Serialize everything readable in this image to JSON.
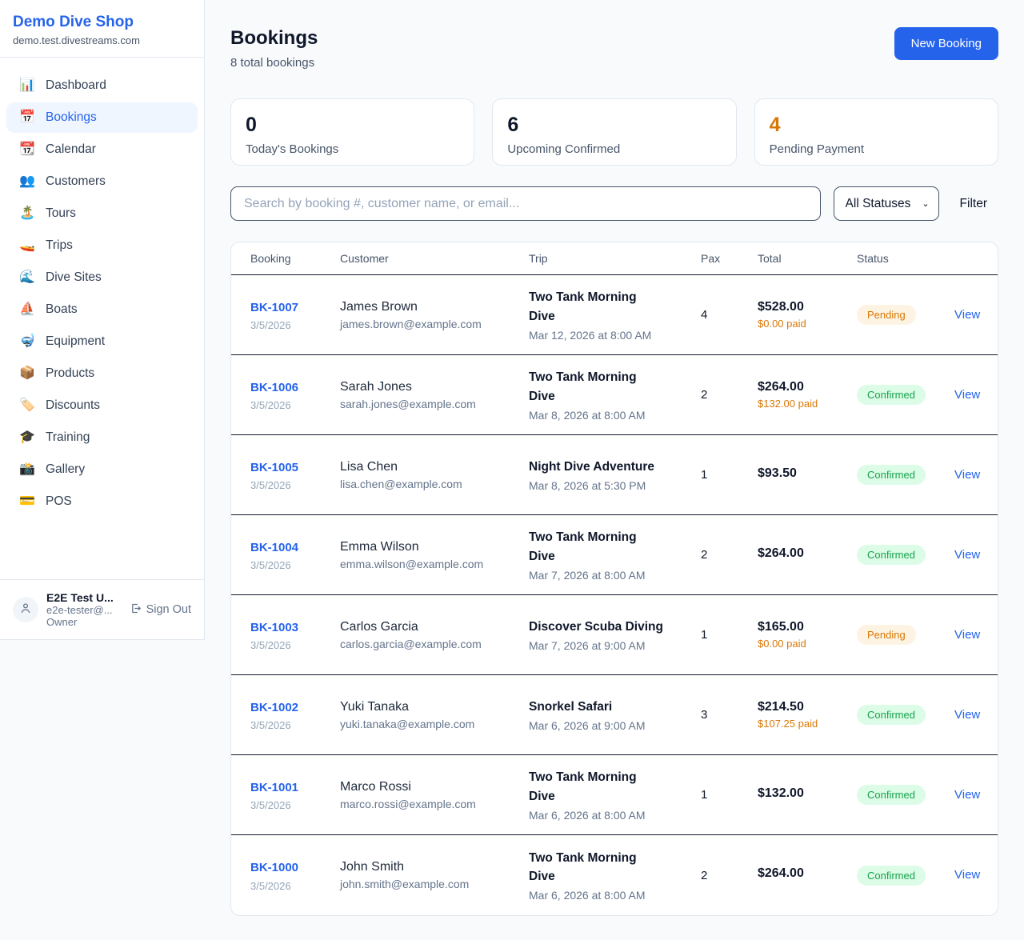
{
  "sidebar": {
    "brand": {
      "name": "Demo Dive Shop",
      "domain": "demo.test.divestreams.com"
    },
    "nav": [
      {
        "label": "Dashboard",
        "icon": "bar-chart-icon",
        "glyph": "📊",
        "active": false
      },
      {
        "label": "Bookings",
        "icon": "calendar-icon",
        "glyph": "📅",
        "active": true
      },
      {
        "label": "Calendar",
        "icon": "tear-off-calendar-icon",
        "glyph": "📆",
        "active": false
      },
      {
        "label": "Customers",
        "icon": "people-icon",
        "glyph": "👥",
        "active": false
      },
      {
        "label": "Tours",
        "icon": "island-icon",
        "glyph": "🏝️",
        "active": false
      },
      {
        "label": "Trips",
        "icon": "speedboat-icon",
        "glyph": "🚤",
        "active": false
      },
      {
        "label": "Dive Sites",
        "icon": "wave-icon",
        "glyph": "🌊",
        "active": false
      },
      {
        "label": "Boats",
        "icon": "sailboat-icon",
        "glyph": "⛵",
        "active": false
      },
      {
        "label": "Equipment",
        "icon": "diving-mask-icon",
        "glyph": "🤿",
        "active": false
      },
      {
        "label": "Products",
        "icon": "package-icon",
        "glyph": "📦",
        "active": false
      },
      {
        "label": "Discounts",
        "icon": "label-tag-icon",
        "glyph": "🏷️",
        "active": false
      },
      {
        "label": "Training",
        "icon": "graduation-cap-icon",
        "glyph": "🎓",
        "active": false
      },
      {
        "label": "Gallery",
        "icon": "camera-flash-icon",
        "glyph": "📸",
        "active": false
      },
      {
        "label": "POS",
        "icon": "credit-card-icon",
        "glyph": "💳",
        "active": false
      }
    ],
    "user": {
      "name": "E2E Test U...",
      "email": "e2e-tester@...",
      "role": "Owner",
      "sign_out_label": "Sign Out"
    }
  },
  "header": {
    "title": "Bookings",
    "subtitle": "8 total bookings",
    "new_booking_label": "New Booking"
  },
  "stats": [
    {
      "value": "0",
      "label": "Today's Bookings",
      "color": "#0f172a"
    },
    {
      "value": "6",
      "label": "Upcoming Confirmed",
      "color": "#0f172a"
    },
    {
      "value": "4",
      "label": "Pending Payment",
      "color": "#d97706"
    }
  ],
  "filters": {
    "search_placeholder": "Search by booking #, customer name, or email...",
    "status_selected": "All Statuses",
    "filter_label": "Filter"
  },
  "table": {
    "columns": [
      "Booking",
      "Customer",
      "Trip",
      "Pax",
      "Total",
      "Status"
    ],
    "view_label": "View",
    "rows": [
      {
        "booking_id": "BK-1007",
        "booking_date": "3/5/2026",
        "customer_name": "James Brown",
        "customer_email": "james.brown@example.com",
        "trip_name": "Two Tank Morning Dive",
        "trip_datetime": "Mar 12, 2026 at 8:00 AM",
        "pax": "4",
        "total": "$528.00",
        "paid": "$0.00 paid",
        "status": "Pending"
      },
      {
        "booking_id": "BK-1006",
        "booking_date": "3/5/2026",
        "customer_name": "Sarah Jones",
        "customer_email": "sarah.jones@example.com",
        "trip_name": "Two Tank Morning Dive",
        "trip_datetime": "Mar 8, 2026 at 8:00 AM",
        "pax": "2",
        "total": "$264.00",
        "paid": "$132.00 paid",
        "status": "Confirmed"
      },
      {
        "booking_id": "BK-1005",
        "booking_date": "3/5/2026",
        "customer_name": "Lisa Chen",
        "customer_email": "lisa.chen@example.com",
        "trip_name": "Night Dive Adventure",
        "trip_datetime": "Mar 8, 2026 at 5:30 PM",
        "pax": "1",
        "total": "$93.50",
        "paid": "",
        "status": "Confirmed"
      },
      {
        "booking_id": "BK-1004",
        "booking_date": "3/5/2026",
        "customer_name": "Emma Wilson",
        "customer_email": "emma.wilson@example.com",
        "trip_name": "Two Tank Morning Dive",
        "trip_datetime": "Mar 7, 2026 at 8:00 AM",
        "pax": "2",
        "total": "$264.00",
        "paid": "",
        "status": "Confirmed"
      },
      {
        "booking_id": "BK-1003",
        "booking_date": "3/5/2026",
        "customer_name": "Carlos Garcia",
        "customer_email": "carlos.garcia@example.com",
        "trip_name": "Discover Scuba Diving",
        "trip_datetime": "Mar 7, 2026 at 9:00 AM",
        "pax": "1",
        "total": "$165.00",
        "paid": "$0.00 paid",
        "status": "Pending"
      },
      {
        "booking_id": "BK-1002",
        "booking_date": "3/5/2026",
        "customer_name": "Yuki Tanaka",
        "customer_email": "yuki.tanaka@example.com",
        "trip_name": "Snorkel Safari",
        "trip_datetime": "Mar 6, 2026 at 9:00 AM",
        "pax": "3",
        "total": "$214.50",
        "paid": "$107.25 paid",
        "status": "Confirmed"
      },
      {
        "booking_id": "BK-1001",
        "booking_date": "3/5/2026",
        "customer_name": "Marco Rossi",
        "customer_email": "marco.rossi@example.com",
        "trip_name": "Two Tank Morning Dive",
        "trip_datetime": "Mar 6, 2026 at 8:00 AM",
        "pax": "1",
        "total": "$132.00",
        "paid": "",
        "status": "Confirmed"
      },
      {
        "booking_id": "BK-1000",
        "booking_date": "3/5/2026",
        "customer_name": "John Smith",
        "customer_email": "john.smith@example.com",
        "trip_name": "Two Tank Morning Dive",
        "trip_datetime": "Mar 6, 2026 at 8:00 AM",
        "pax": "2",
        "total": "$264.00",
        "paid": "",
        "status": "Confirmed"
      }
    ]
  },
  "colors": {
    "accent_blue": "#2563eb",
    "pending_orange": "#d97706",
    "pending_badge_bg": "#fdf3e2",
    "confirmed_green": "#16a34a",
    "confirmed_badge_bg": "#dcfce7",
    "page_background": "#f8fafc"
  }
}
